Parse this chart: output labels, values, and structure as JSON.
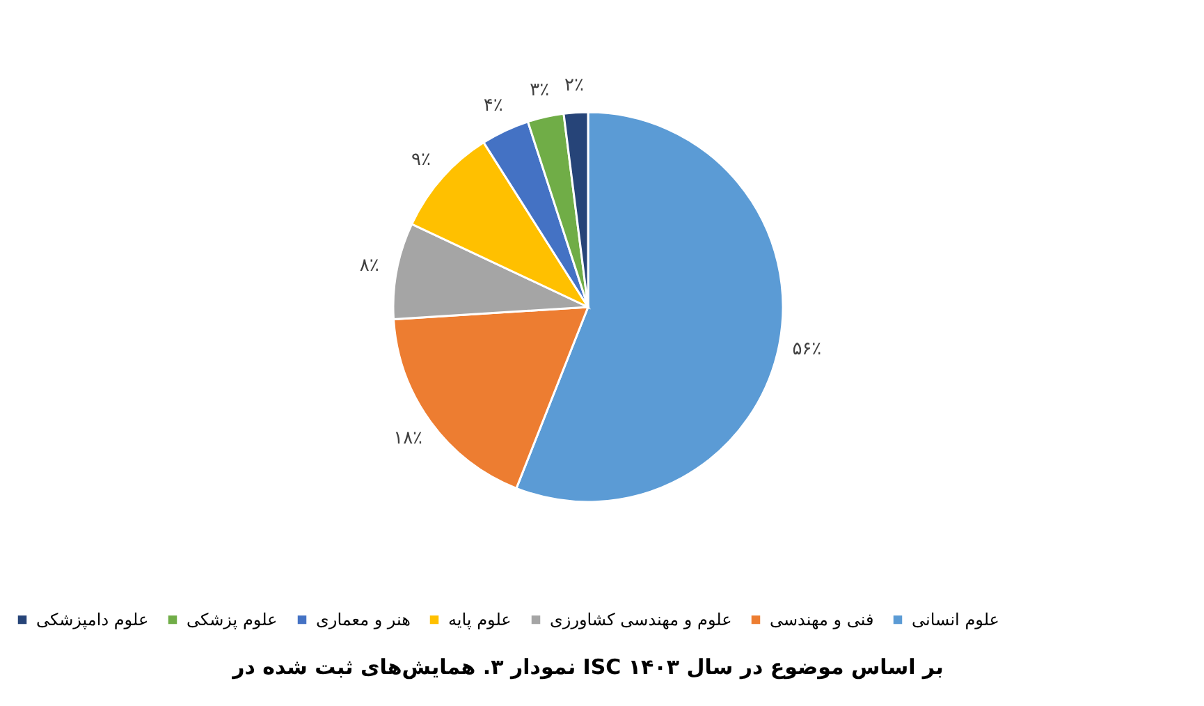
{
  "chart_data": {
    "type": "pie",
    "title": "نمودار ۳. همایش‌های ثبت شده در ISC بر اساس موضوع در سال ۱۴۰۳",
    "categories": [
      "علوم انسانی",
      "فنی و مهندسی",
      "علوم و مهندسی کشاورزی",
      "علوم پایه",
      "هنر و معماری",
      "علوم پزشکی",
      "علوم دامپزشکی"
    ],
    "values": [
      56,
      18,
      8,
      9,
      4,
      3,
      2
    ],
    "value_labels": [
      "۵۶٪",
      "۱۸٪",
      "۸٪",
      "۹٪",
      "۴٪",
      "۳٪",
      "۲٪"
    ],
    "colors": [
      "#5b9bd5",
      "#ed7d31",
      "#a5a5a5",
      "#ffc000",
      "#4472c4",
      "#70ad47",
      "#264478"
    ],
    "legend": "bottom"
  }
}
